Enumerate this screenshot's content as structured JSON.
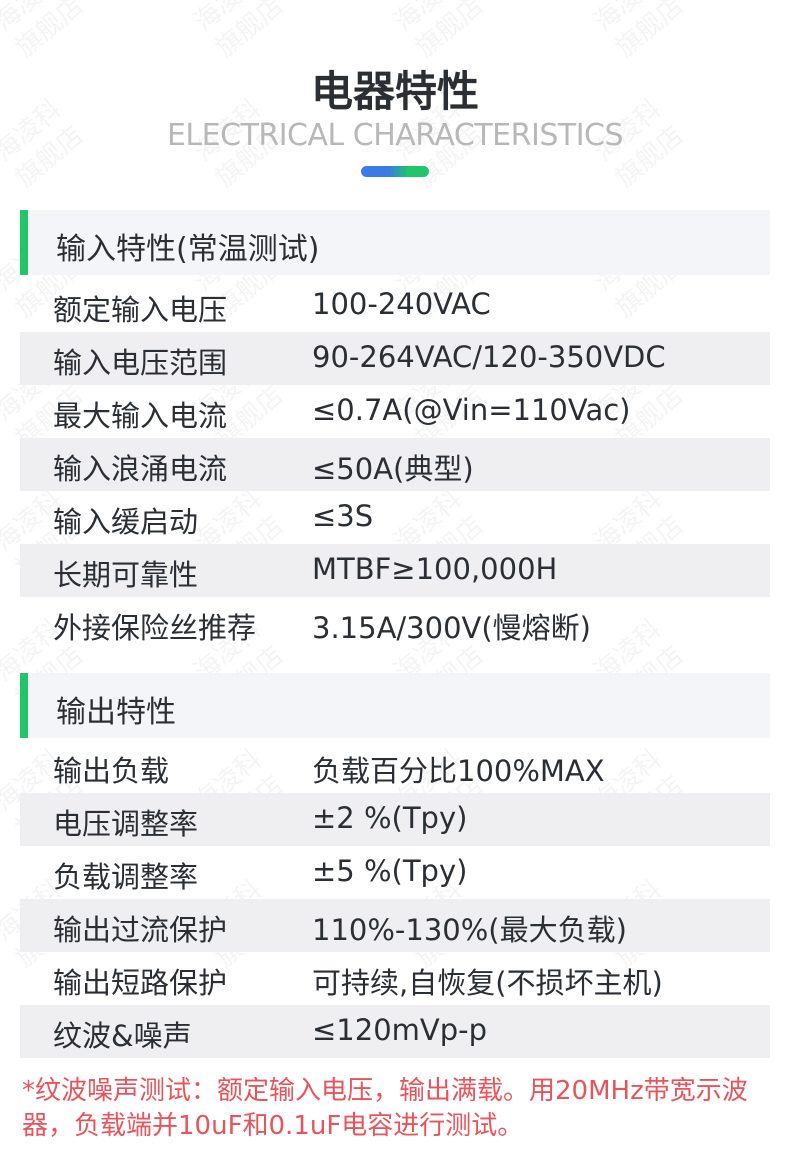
{
  "watermark": "海凌科\n旗舰店",
  "header": {
    "title": "电器特性",
    "subtitle": "ELECTRICAL CHARACTERISTICS",
    "accent_colors": [
      "#3b7be6",
      "#20c56c"
    ]
  },
  "input": {
    "title": "输入特性(常温测试)",
    "rows": [
      {
        "label": "额定输入电压",
        "value": "100-240VAC"
      },
      {
        "label": "输入电压范围",
        "value": "90-264VAC/120-350VDC"
      },
      {
        "label": "最大输入电流",
        "value": "≤0.7A(@Vin=110Vac)"
      },
      {
        "label": "输入浪涌电流",
        "value": "≤50A(典型)"
      },
      {
        "label": "输入缓启动",
        "value": "≤3S"
      },
      {
        "label": "长期可靠性",
        "value": "MTBF≥100,000H"
      },
      {
        "label": "外接保险丝推荐",
        "value": "3.15A/300V(慢熔断)"
      }
    ]
  },
  "output": {
    "title": "输出特性",
    "rows": [
      {
        "label": "输出负载",
        "value": "负载百分比100%MAX"
      },
      {
        "label": "电压调整率",
        "value": "±2 %(Tpy)"
      },
      {
        "label": "负载调整率",
        "value": "±5 %(Tpy)"
      },
      {
        "label": "输出过流保护",
        "value": "110%-130%(最大负载)"
      },
      {
        "label": "输出短路保护",
        "value": "可持续,自恢复(不损坏主机)"
      },
      {
        "label": "纹波&噪声",
        "value": "≤120mVp-p"
      }
    ]
  },
  "note": "*纹波噪声测试：额定输入电压，输出满载。用20MHz带宽示波器，负载端并10uF和0.1uF电容进行测试。"
}
